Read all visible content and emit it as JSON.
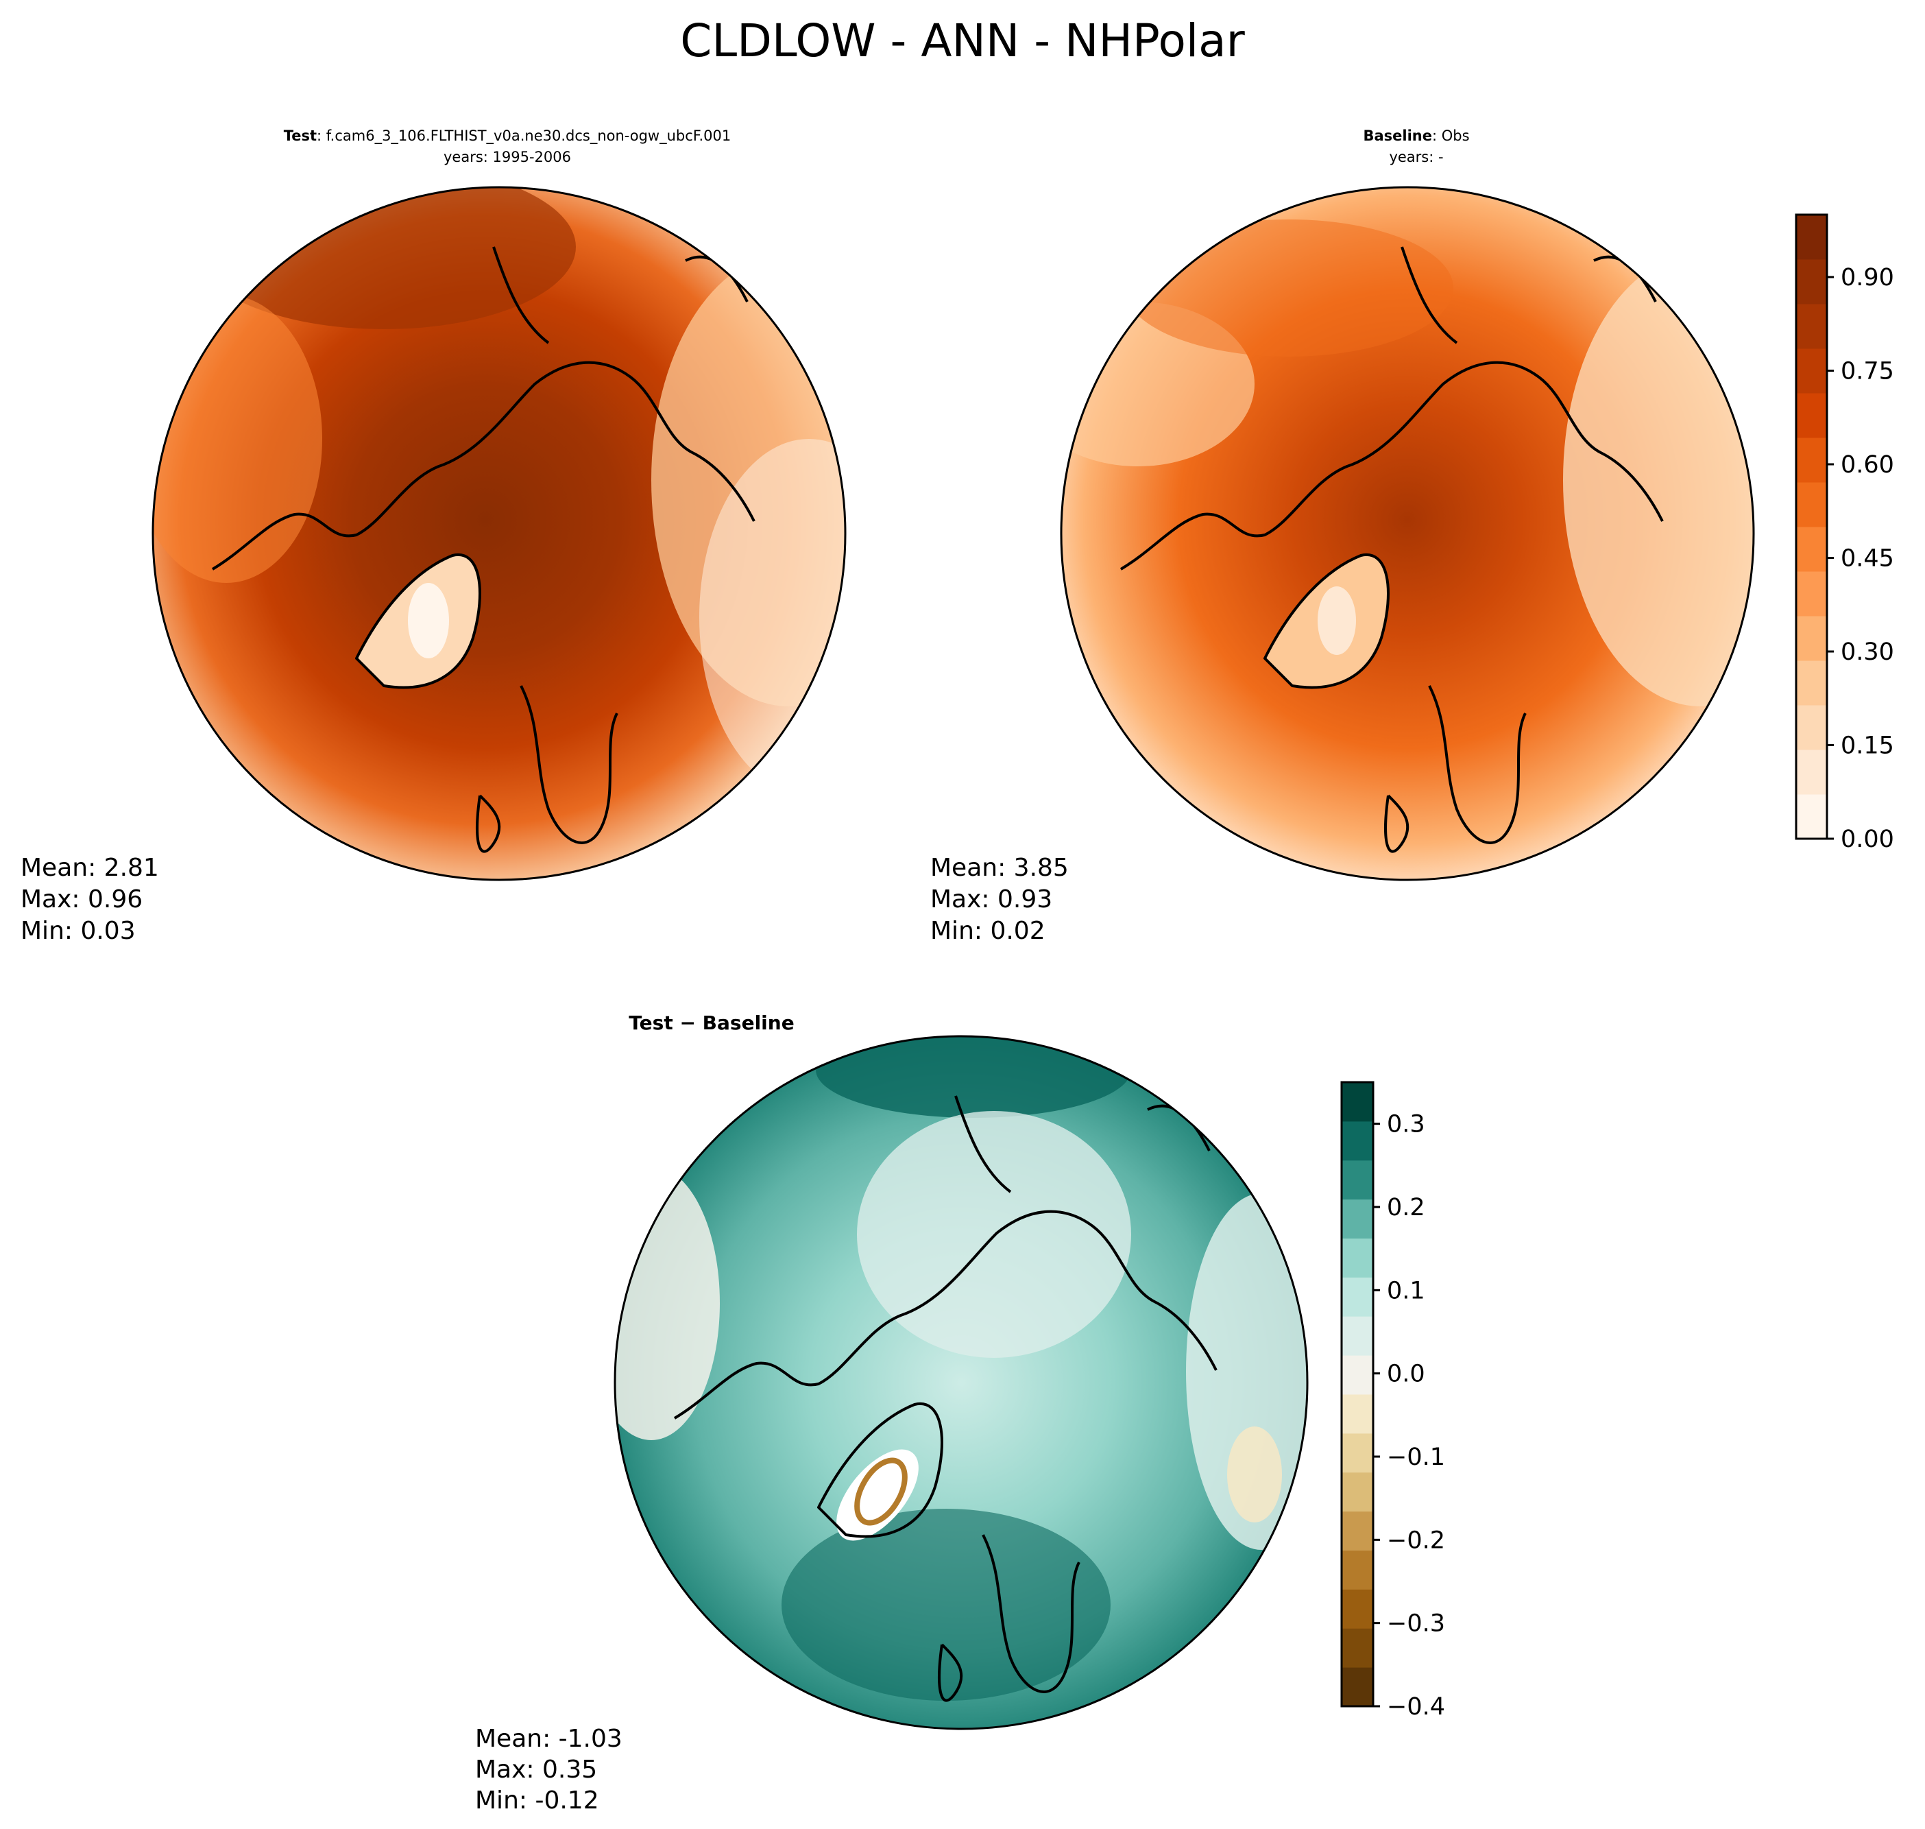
{
  "figure": {
    "title": "CLDLOW - ANN - NHPolar"
  },
  "panels": {
    "test": {
      "label_bold": "Test",
      "label_rest": ": f.cam6_3_106.FLTHIST_v0a.ne30.dcs_non-ogw_ubcF.001",
      "subtitle": "years: 1995-2006",
      "stats": {
        "mean": "Mean:  2.81",
        "max": "Max:  0.96",
        "min": "Min:  0.03"
      }
    },
    "baseline": {
      "label_bold": "Baseline",
      "label_rest": ": Obs",
      "subtitle": "years: -",
      "stats": {
        "mean": "Mean:  3.85",
        "max": "Max:  0.93",
        "min": "Min:  0.02"
      }
    },
    "difference": {
      "label": "Test − Baseline",
      "stats": {
        "mean": "Mean: -1.03",
        "max": "Max:  0.35",
        "min": "Min: -0.12"
      }
    }
  },
  "colorbar_main": {
    "range": [
      0.0,
      1.0
    ],
    "ticks": [
      "0.00",
      "0.15",
      "0.30",
      "0.45",
      "0.60",
      "0.75",
      "0.90"
    ],
    "colormap": "Oranges",
    "colors": [
      "#fff5eb",
      "#fee8d3",
      "#fdd9b5",
      "#fdc997",
      "#fdb272",
      "#fd9a52",
      "#f98434",
      "#f06c1a",
      "#e4590c",
      "#d44402",
      "#bd3c02",
      "#a83603",
      "#942f03",
      "#7f2704"
    ]
  },
  "colorbar_diff": {
    "range": [
      -0.4,
      0.35
    ],
    "ticks": [
      "−0.4",
      "−0.3",
      "−0.2",
      "−0.1",
      "0.0",
      "0.1",
      "0.2",
      "0.3"
    ],
    "colormap": "BrBG",
    "colors": [
      "#5c3607",
      "#7d4b0a",
      "#9a5e10",
      "#b47b2a",
      "#c99a4e",
      "#dcbc78",
      "#ead49e",
      "#f4e8c7",
      "#f3f2eb",
      "#dceeea",
      "#bee7e0",
      "#94d5ca",
      "#5fb3a7",
      "#2a8b7f",
      "#0d6a60",
      "#00463c"
    ]
  }
}
